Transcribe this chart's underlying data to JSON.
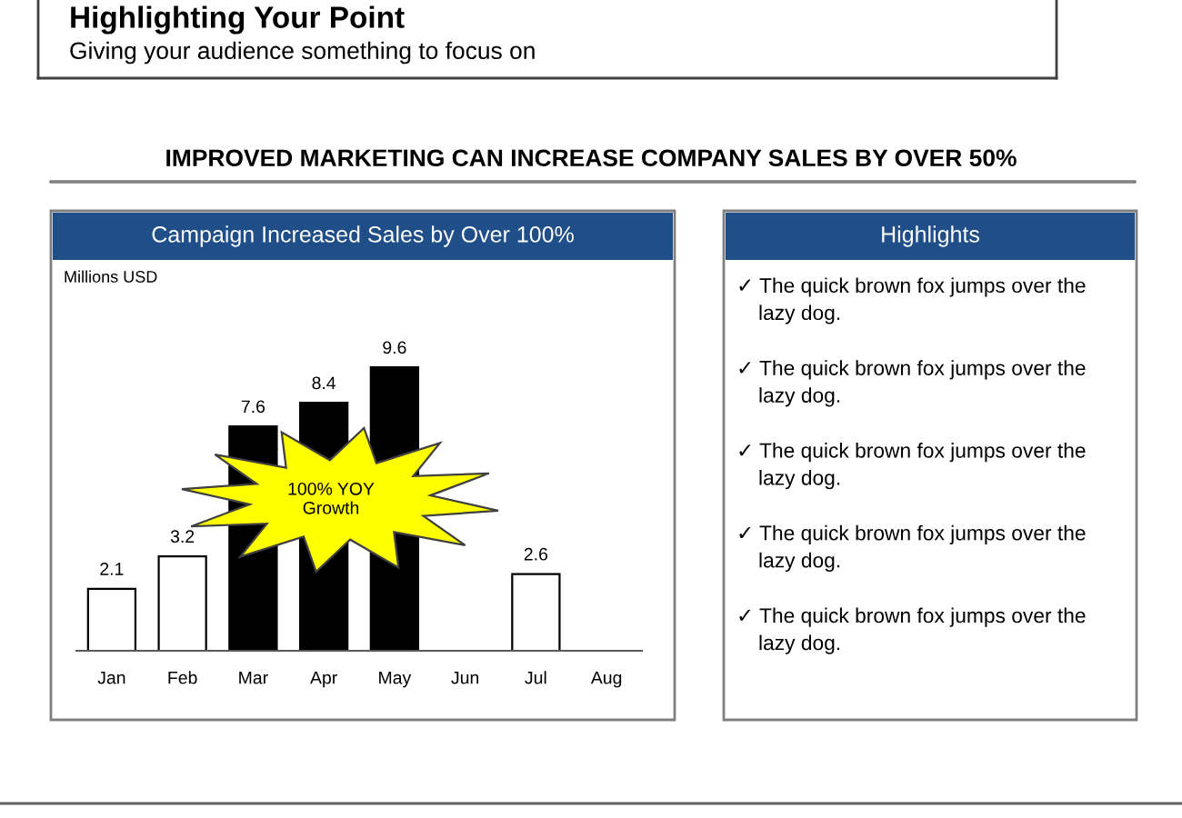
{
  "chart_data": [
    {
      "type": "bar",
      "title": "Campaign Increased Sales by Over 100%",
      "ylabel": "Millions USD",
      "categories": [
        "Jan",
        "Feb",
        "Mar",
        "Apr",
        "May",
        "Jun",
        "Jul",
        "Aug"
      ],
      "values": [
        2.1,
        3.2,
        7.6,
        8.4,
        9.6,
        null,
        2.6,
        null
      ],
      "colors": [
        "#ffffff",
        "#ffffff",
        "#000000",
        "#000000",
        "#000000",
        "#ffffff",
        "#ffffff",
        "#ffffff"
      ],
      "data_labels": true,
      "tick_labels": "x",
      "annotations": [
        "Highlighting Your Point",
        "Giving your audience something to focus on",
        "IMPROVED MARKETING CAN INCREASE COMPANY SALES BY OVER 50%",
        "100% YOY\nGrowth"
      ]
    },
    {
      "type": "other",
      "title": "Highlights",
      "annotations": [
        "✓ The quick brown fox jumps over the\nlazy dog.",
        "✓ The quick brown fox jumps over the\nlazy dog.",
        "✓ The quick brown fox jumps over the\nlazy dog.",
        "✓ The quick brown fox jumps over the\nlazy dog.",
        "✓ The quick brown fox jumps over the\nlazy dog."
      ]
    }
  ]
}
